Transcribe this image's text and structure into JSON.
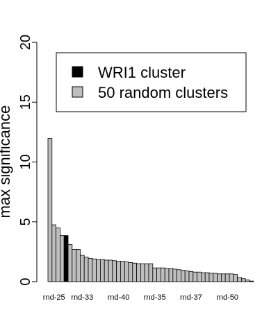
{
  "chart_data": {
    "type": "bar",
    "ylabel": "max significance",
    "ylim": [
      0,
      20
    ],
    "yticks": [
      0,
      5,
      10,
      15,
      20
    ],
    "legend": {
      "placement": "top-right",
      "entries": [
        {
          "label": "WRI1 cluster",
          "color": "#000000"
        },
        {
          "label": "50 random clusters",
          "color": "#bebebe"
        }
      ]
    },
    "xtick_labels": [
      "rnd-25",
      "rnd-33",
      "rnd-40",
      "rnd-35",
      "rnd-37",
      "rnd-50"
    ],
    "xtick_bar_indices": [
      1,
      8,
      17,
      26,
      35,
      44
    ],
    "highlight_index": 4,
    "values": [
      11.97,
      4.75,
      4.5,
      3.85,
      3.85,
      3.1,
      2.7,
      2.7,
      2.2,
      2.05,
      1.95,
      1.9,
      1.85,
      1.85,
      1.8,
      1.8,
      1.75,
      1.7,
      1.7,
      1.65,
      1.6,
      1.55,
      1.5,
      1.5,
      1.5,
      1.5,
      1.15,
      1.15,
      1.15,
      1.1,
      1.1,
      1.05,
      1.0,
      0.95,
      0.9,
      0.85,
      0.8,
      0.8,
      0.75,
      0.75,
      0.7,
      0.7,
      0.65,
      0.65,
      0.65,
      0.65,
      0.6,
      0.35,
      0.25,
      0.15,
      0.05
    ]
  }
}
